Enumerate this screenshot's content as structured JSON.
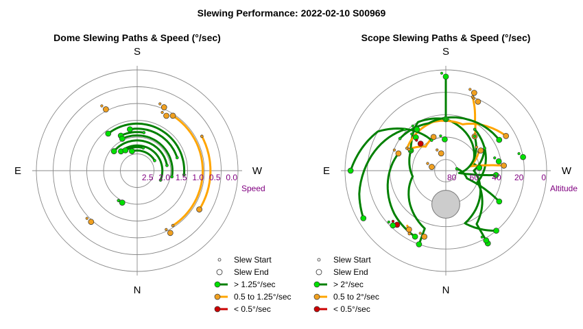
{
  "page_title": "Slewing Performance: 2022-02-10 S00969",
  "colors": {
    "fast": "#008000",
    "fast_fill": "#00e000",
    "mid": "#ffa500",
    "mid_fill": "#f0a020",
    "slow": "#cc0000",
    "ring": "#888888",
    "axis": "#888888",
    "tick": "#800080",
    "moon_fill": "#cccccc"
  },
  "chart_data": [
    {
      "type": "polar-path",
      "title": "Dome Slewing Paths & Speed (°/sec)",
      "directions": {
        "top": "S",
        "bottom": "N",
        "left": "E",
        "right": "W"
      },
      "radial_axis": {
        "label": "Speed",
        "ticks": [
          "2.5",
          "2.0",
          "1.5",
          "1.0",
          "0.5",
          "0.0"
        ],
        "tick_values": [
          2.5,
          2.0,
          1.5,
          1.0,
          0.5,
          0.0
        ],
        "range": [
          3.0,
          0.0
        ]
      },
      "legend": [
        {
          "marker": "start",
          "label": "Slew Start"
        },
        {
          "marker": "end",
          "label": "Slew End"
        },
        {
          "marker": "fast",
          "label": "> 1.25°/sec"
        },
        {
          "marker": "mid",
          "label": "0.5 to 1.25°/sec"
        },
        {
          "marker": "slow",
          "label": "< 0.5°/sec"
        }
      ],
      "paths": [
        {
          "cls": "mid",
          "az0": 147,
          "az1": 33,
          "r": 1.05
        },
        {
          "cls": "mid",
          "az0": 62,
          "az1": 122,
          "r": 0.82
        },
        {
          "cls": "fast",
          "az0": 10,
          "az1": 335,
          "r": 1.85
        },
        {
          "cls": "fast",
          "az0": 95,
          "az1": 322,
          "r": 1.6
        },
        {
          "cls": "fast",
          "az0": 72,
          "az1": 350,
          "r": 1.75
        },
        {
          "cls": "fast",
          "az0": 100,
          "az1": 335,
          "r": 1.95
        },
        {
          "cls": "fast",
          "az0": 80,
          "az1": 310,
          "r": 2.1
        },
        {
          "cls": "fast",
          "az0": 112,
          "az1": 320,
          "r": 2.25
        },
        {
          "cls": "fast",
          "az0": 60,
          "az1": 345,
          "r": 2.4
        },
        {
          "cls": "fast",
          "az0": 15,
          "az1": 330,
          "r": 2.3
        },
        {
          "cls": "fast",
          "az0": 212,
          "az1": 205,
          "r": 1.95
        }
      ],
      "points": [
        {
          "cls": "mid",
          "az": 23,
          "r": 0.95
        },
        {
          "cls": "mid",
          "az": 28,
          "r": 1.15
        },
        {
          "cls": "mid",
          "az": 333,
          "r": 0.95
        },
        {
          "cls": "mid",
          "az": 222,
          "r": 0.95
        },
        {
          "cls": "mid",
          "az": 152,
          "r": 0.9
        }
      ]
    },
    {
      "type": "polar-path",
      "title": "Scope Slewing Paths & Speed (°/sec)",
      "directions": {
        "top": "S",
        "bottom": "N",
        "left": "E",
        "right": "W"
      },
      "radial_axis": {
        "label": "Altitude",
        "ticks": [
          "80",
          "60",
          "40",
          "20",
          "0"
        ],
        "tick_values": [
          80,
          60,
          40,
          20,
          0
        ],
        "range": [
          90,
          0
        ]
      },
      "moon": {
        "az": 180,
        "alt": 60,
        "radius_deg": 12.5
      },
      "legend": [
        {
          "marker": "start",
          "label": "Slew Start"
        },
        {
          "marker": "end",
          "label": "Slew End"
        },
        {
          "marker": "fast",
          "label": "> 2°/sec"
        },
        {
          "marker": "mid",
          "label": "0.5 to 2°/sec"
        },
        {
          "marker": "slow",
          "label": "< 0.5°/sec"
        }
      ],
      "paths": [
        {
          "cls": "fast",
          "pts": [
            [
              0,
              6
            ],
            [
              0,
              44
            ]
          ]
        },
        {
          "cls": "fast",
          "pts": [
            [
              0,
              44
            ],
            [
              330,
              40
            ],
            [
              310,
              50
            ],
            [
              300,
              54
            ]
          ]
        },
        {
          "cls": "fast",
          "pts": [
            [
              300,
              54
            ],
            [
              260,
              60
            ],
            [
              200,
              35
            ],
            [
              200,
              20
            ]
          ]
        },
        {
          "cls": "fast",
          "pts": [
            [
              0,
              44
            ],
            [
              40,
              55
            ],
            [
              75,
              65
            ],
            [
              85,
              60
            ]
          ]
        },
        {
          "cls": "mid",
          "pts": [
            [
              300,
              50
            ],
            [
              345,
              45
            ],
            [
              20,
              46
            ],
            [
              45,
              35
            ],
            [
              60,
              28
            ]
          ]
        },
        {
          "cls": "mid",
          "pts": [
            [
              20,
              20
            ],
            [
              30,
              38
            ],
            [
              40,
              50
            ]
          ]
        },
        {
          "cls": "fast",
          "pts": [
            [
              35,
              45
            ],
            [
              110,
              60
            ],
            [
              150,
              35
            ],
            [
              150,
              15
            ]
          ]
        },
        {
          "cls": "fast",
          "pts": [
            [
              60,
              50
            ],
            [
              90,
              65
            ],
            [
              160,
              40
            ],
            [
              140,
              20
            ]
          ]
        },
        {
          "cls": "fast",
          "pts": [
            [
              290,
              45
            ],
            [
              230,
              30
            ],
            [
              205,
              25
            ]
          ]
        },
        {
          "cls": "mid",
          "pts": [
            [
              300,
              52
            ],
            [
              320,
              62
            ],
            [
              340,
              58
            ]
          ]
        },
        {
          "cls": "fast",
          "pts": [
            [
              335,
              60
            ],
            [
              300,
              20
            ],
            [
              270,
              5
            ]
          ]
        },
        {
          "cls": "fast",
          "pts": [
            [
              315,
              38
            ],
            [
              255,
              10
            ],
            [
              240,
              5
            ]
          ]
        },
        {
          "cls": "mid",
          "pts": [
            [
              210,
              25
            ],
            [
              215,
              30
            ],
            [
              212,
              28
            ]
          ]
        },
        {
          "cls": "fast",
          "pts": [
            [
              80,
              80
            ],
            [
              110,
              70
            ],
            [
              120,
              35
            ]
          ]
        },
        {
          "cls": "mid",
          "pts": [
            [
              60,
              56
            ],
            [
              80,
              68
            ],
            [
              85,
              38
            ]
          ]
        },
        {
          "cls": "fast",
          "pts": [
            [
              305,
              40
            ],
            [
              340,
              45
            ],
            [
              25,
              40
            ],
            [
              60,
              35
            ]
          ]
        },
        {
          "cls": "fast",
          "pts": [
            [
              40,
              50
            ],
            [
              100,
              78
            ],
            [
              95,
              45
            ]
          ]
        }
      ],
      "points": [
        {
          "cls": "fast",
          "az": 0,
          "alt": 6
        },
        {
          "cls": "fast",
          "az": 325,
          "alt": 45
        },
        {
          "cls": "fast",
          "az": 318,
          "alt": 50
        },
        {
          "cls": "slow",
          "az": 317,
          "alt": 57
        },
        {
          "cls": "slow",
          "az": 222,
          "alt": 25
        },
        {
          "cls": "mid",
          "az": 198,
          "alt": 28
        },
        {
          "cls": "fast",
          "az": 224,
          "alt": 22
        },
        {
          "cls": "mid",
          "az": 20,
          "alt": 16
        },
        {
          "cls": "mid",
          "az": 25,
          "alt": 22
        },
        {
          "cls": "fast",
          "az": 80,
          "alt": 42
        },
        {
          "cls": "fast",
          "az": 80,
          "alt": 20
        },
        {
          "cls": "mid",
          "az": 290,
          "alt": 45
        },
        {
          "cls": "mid",
          "az": 345,
          "alt": 74
        },
        {
          "cls": "mid",
          "az": 60,
          "alt": 54
        },
        {
          "cls": "fast",
          "az": 358,
          "alt": 62
        },
        {
          "cls": "fast",
          "az": 150,
          "alt": 18
        },
        {
          "cls": "mid",
          "az": 285,
          "alt": 77
        }
      ]
    }
  ]
}
